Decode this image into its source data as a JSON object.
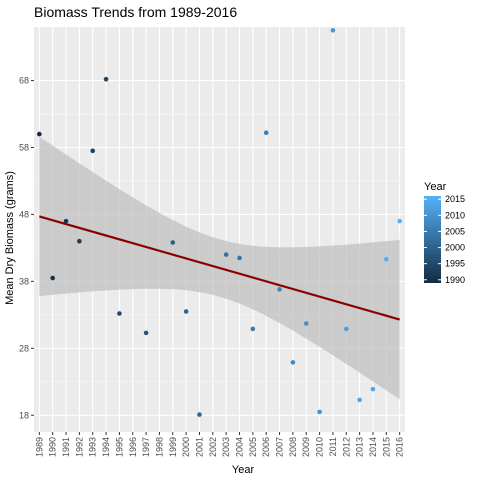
{
  "chart_data": {
    "type": "scatter",
    "title": "Biomass Trends from 1989-2016",
    "xlabel": "Year",
    "ylabel": "Mean Dry Biomass (grams)",
    "xlim": [
      1988.6,
      2016.4
    ],
    "ylim": [
      15.5,
      76.0
    ],
    "x_ticks": [
      1989,
      1990,
      1991,
      1992,
      1993,
      1994,
      1995,
      1996,
      1997,
      1998,
      1999,
      2000,
      2001,
      2002,
      2003,
      2004,
      2005,
      2006,
      2007,
      2008,
      2009,
      2010,
      2011,
      2012,
      2013,
      2014,
      2015,
      2016
    ],
    "y_ticks": [
      18,
      28,
      38,
      48,
      58,
      68
    ],
    "grid": true,
    "legend": {
      "title": "Year",
      "position": "right",
      "ticks": [
        2015,
        2010,
        2005,
        2000,
        1995,
        1990
      ],
      "range": [
        1989,
        2016
      ]
    },
    "colors": {
      "low": "#132B43",
      "high": "#56B1F7",
      "trend_line": "#8B0000",
      "ribbon": "#BEBEBE",
      "panel_bg": "#EBEBEB"
    },
    "series": [
      {
        "values": [
          {
            "x": 1989,
            "y": 60.0
          },
          {
            "x": 1990,
            "y": 38.5
          },
          {
            "x": 1991,
            "y": 47.0
          },
          {
            "x": 1992,
            "y": 44.0
          },
          {
            "x": 1993,
            "y": 57.5
          },
          {
            "x": 1994,
            "y": 68.2
          },
          {
            "x": 1995,
            "y": 33.2
          },
          {
            "x": 1997,
            "y": 30.3
          },
          {
            "x": 1999,
            "y": 43.8
          },
          {
            "x": 2000,
            "y": 33.5
          },
          {
            "x": 2001,
            "y": 18.1
          },
          {
            "x": 2003,
            "y": 42.0
          },
          {
            "x": 2004,
            "y": 41.5
          },
          {
            "x": 2005,
            "y": 30.9
          },
          {
            "x": 2006,
            "y": 60.2
          },
          {
            "x": 2007,
            "y": 36.8
          },
          {
            "x": 2008,
            "y": 25.9
          },
          {
            "x": 2009,
            "y": 31.7
          },
          {
            "x": 2010,
            "y": 18.5
          },
          {
            "x": 2011,
            "y": 75.5
          },
          {
            "x": 2012,
            "y": 30.9
          },
          {
            "x": 2013,
            "y": 20.3
          },
          {
            "x": 2014,
            "y": 21.9
          },
          {
            "x": 2015,
            "y": 41.3
          },
          {
            "x": 2016,
            "y": 47.0
          }
        ]
      }
    ],
    "trend": {
      "method": "linear",
      "x": [
        1989,
        2016
      ],
      "y": [
        47.7,
        32.3
      ],
      "ci_lower": [
        35.6,
        21.6
      ],
      "ci_upper": [
        59.6,
        43.3
      ]
    }
  }
}
